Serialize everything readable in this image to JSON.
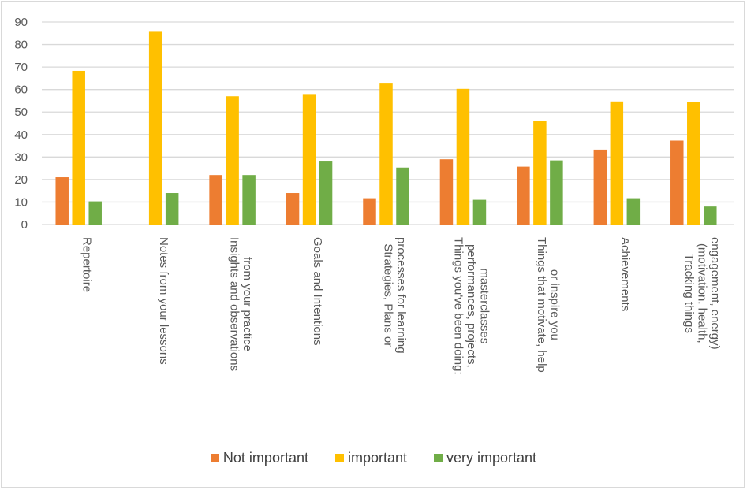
{
  "chart_data": {
    "type": "bar",
    "title": "",
    "xlabel": "",
    "ylabel": "",
    "ylim": [
      0,
      90
    ],
    "yticks": [
      0,
      10,
      20,
      30,
      40,
      50,
      60,
      70,
      80,
      90
    ],
    "grid": true,
    "legend_position": "bottom",
    "categories": [
      [
        "Repertoire"
      ],
      [
        "Notes from your lessons"
      ],
      [
        "Insights and observations",
        "from your practice"
      ],
      [
        "Goals and Intentions"
      ],
      [
        "Strategies, Plans or",
        "processes for learning"
      ],
      [
        "Things you've been doing:",
        "performances, projects,",
        "masterclasses"
      ],
      [
        "Things that motivate, help",
        "or inspire you"
      ],
      [
        "Achievements"
      ],
      [
        "Tracking things",
        "(motivation, health,",
        "engagement, energy)"
      ]
    ],
    "series": [
      {
        "name": "Not important",
        "color": "#ED7D31",
        "values": [
          21,
          0,
          22,
          14,
          11.7,
          29,
          25.7,
          33.3,
          37.3
        ]
      },
      {
        "name": "important",
        "color": "#FFC000",
        "values": [
          68.3,
          86,
          57,
          58,
          63,
          60.3,
          46,
          54.7,
          54.3
        ]
      },
      {
        "name": "very important",
        "color": "#70AD47",
        "values": [
          10.3,
          14,
          22,
          28,
          25.3,
          11,
          28.5,
          11.7,
          8
        ]
      }
    ]
  },
  "colors": {
    "gridline": "#d9d9d9",
    "axis_text": "#595959",
    "border": "#d9d9d9"
  }
}
